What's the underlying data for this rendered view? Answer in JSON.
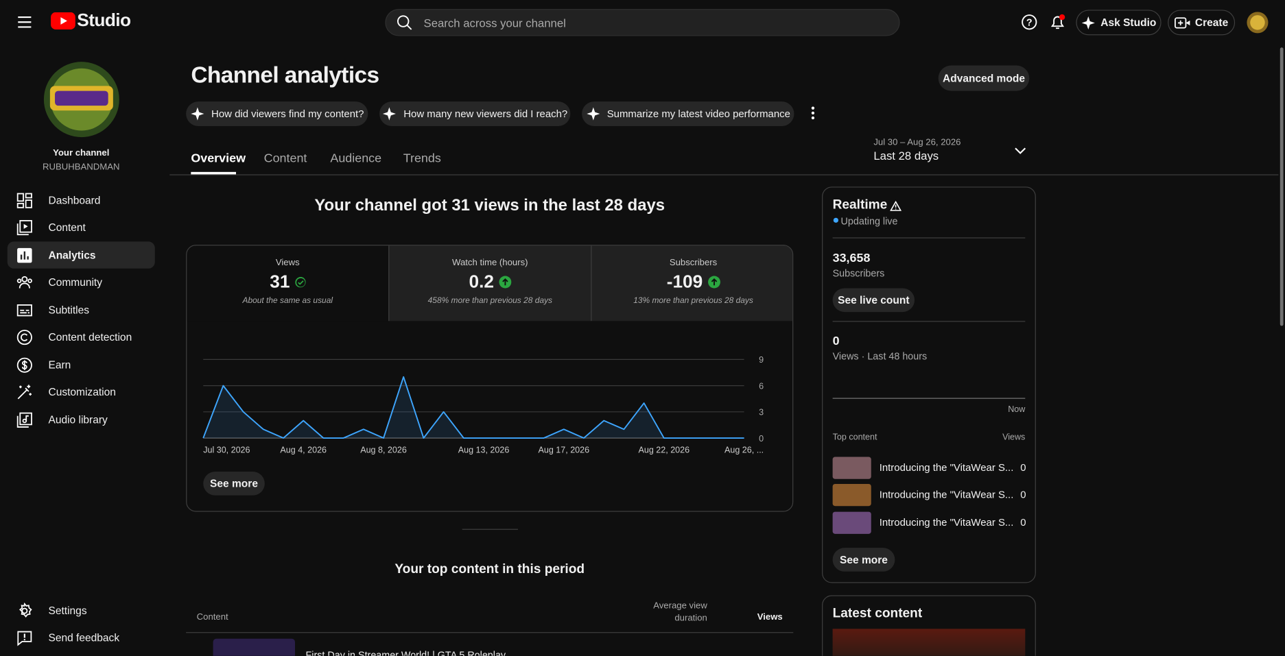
{
  "header": {
    "logo_text": "Studio",
    "search_placeholder": "Search across your channel",
    "ask_studio": "Ask Studio",
    "create": "Create"
  },
  "sidebar": {
    "channel_label": "Your channel",
    "channel_name": "RUBUHBANDMAN",
    "nav": [
      "Dashboard",
      "Content",
      "Analytics",
      "Community",
      "Subtitles",
      "Content detection",
      "Earn",
      "Customization",
      "Audio library"
    ],
    "bottom": [
      "Settings",
      "Send feedback"
    ]
  },
  "main": {
    "title": "Channel analytics",
    "advanced_mode": "Advanced mode",
    "prompts": [
      "How did viewers find my content?",
      "How many new viewers did I reach?",
      "Summarize my latest video performance"
    ],
    "tabs": [
      "Overview",
      "Content",
      "Audience",
      "Trends"
    ],
    "date_range": {
      "range": "Jul 30 – Aug 26, 2026",
      "label": "Last 28 days"
    },
    "headline": "Your channel got 31 views in the last 28 days",
    "metrics": [
      {
        "label": "Views",
        "value": 31,
        "note": "About the same as usual"
      },
      {
        "label": "Watch time (hours)",
        "value": 0.2,
        "note": "458% more than previous 28 days"
      },
      {
        "label": "Subscribers",
        "value": -109,
        "note": "13% more than previous 28 days"
      }
    ],
    "see_more": "See more",
    "top_content": {
      "title": "Your top content in this period",
      "columns": {
        "content": "Content",
        "avg_view_duration": "Average view duration",
        "views": "Views"
      },
      "rows": [
        {
          "title": "First Day in Streamer World! | GTA 5 Roleplay"
        }
      ]
    }
  },
  "chart_data": {
    "type": "line",
    "categories": [
      "Jul 30, 2026",
      null,
      null,
      null,
      null,
      "Aug 4, 2026",
      null,
      null,
      null,
      "Aug 8, 2026",
      null,
      null,
      null,
      null,
      "Aug 13, 2026",
      null,
      null,
      null,
      "Aug 17, 2026",
      null,
      null,
      null,
      null,
      "Aug 22, 2026",
      null,
      null,
      null,
      "Aug 26, ..."
    ],
    "series": [
      {
        "name": "Views",
        "color": "#3ea6ff",
        "values": [
          0,
          6,
          3,
          1,
          0,
          2,
          0,
          0,
          1,
          0,
          7,
          0,
          3,
          0,
          0,
          0,
          0,
          0,
          1,
          0,
          2,
          1,
          4,
          0,
          0,
          0,
          0,
          0
        ]
      }
    ],
    "ylim": [
      0,
      9
    ],
    "yticks": [
      0,
      3,
      6,
      9
    ],
    "grid": true
  },
  "realtime": {
    "title": "Realtime",
    "status": "Updating live",
    "subscribers_value": "33,658",
    "subscribers_label": "Subscribers",
    "see_live_count": "See live count",
    "views_value": "0",
    "views_label": "Views · Last 48 hours",
    "now": "Now",
    "top_content_label": "Top content",
    "views_column": "Views",
    "items": [
      {
        "title": "Introducing the \"VitaWear S...",
        "views": "0"
      },
      {
        "title": "Introducing the \"VitaWear S...",
        "views": "0"
      },
      {
        "title": "Introducing the \"VitaWear S...",
        "views": "0"
      }
    ],
    "see_more": "See more"
  },
  "latest_content": {
    "title": "Latest content"
  }
}
